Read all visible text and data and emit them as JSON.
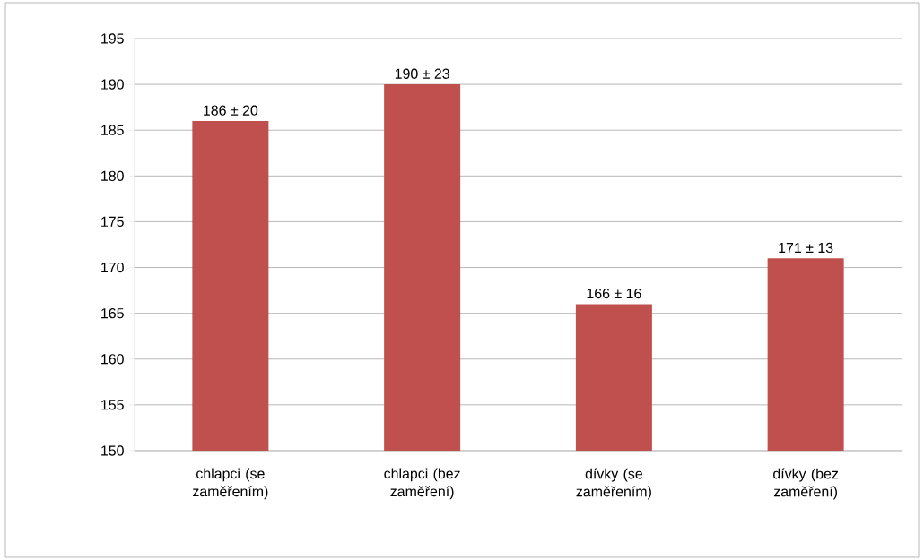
{
  "chart_data": {
    "type": "bar",
    "categories": [
      "chlapci (se zaměřením)",
      "chlapci (bez zaměření)",
      "dívky (se zaměřením)",
      "dívky (bez zaměření)"
    ],
    "values": [
      186,
      190,
      166,
      171
    ],
    "value_labels": [
      "186  ± 20",
      "190 ± 23",
      "166 ± 16",
      "171 ± 13"
    ],
    "color": "#c0504d",
    "ylim": [
      150,
      195
    ],
    "yticks": [
      150,
      155,
      160,
      165,
      170,
      175,
      180,
      185,
      190,
      195
    ],
    "grid": "y"
  }
}
